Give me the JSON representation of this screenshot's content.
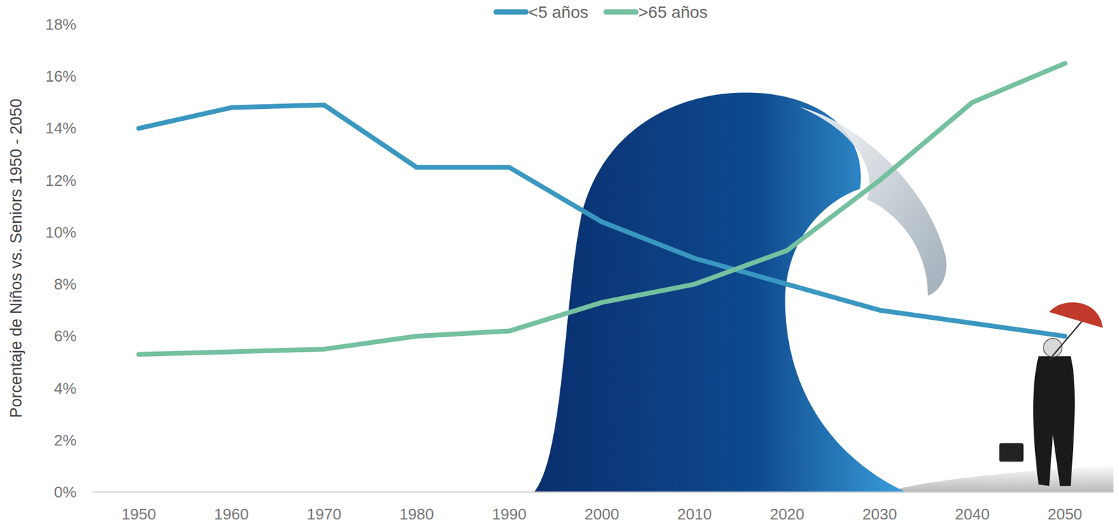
{
  "chart_data": {
    "type": "line",
    "y_label": "Porcentaje de Niños vs. Seniors 1950 - 2050",
    "x": [
      1950,
      1960,
      1970,
      1980,
      1990,
      2000,
      2010,
      2020,
      2030,
      2040,
      2050
    ],
    "xlim": [
      1945,
      2055
    ],
    "xticks": [
      1950,
      1960,
      1970,
      1980,
      1990,
      2000,
      2010,
      2020,
      2030,
      2040,
      2050
    ],
    "ylim": [
      0,
      18
    ],
    "yticks": [
      {
        "value": 0,
        "label": "0%"
      },
      {
        "value": 2,
        "label": "2%"
      },
      {
        "value": 4,
        "label": "4%"
      },
      {
        "value": 6,
        "label": "6%"
      },
      {
        "value": 8,
        "label": "8%"
      },
      {
        "value": 10,
        "label": "10%"
      },
      {
        "value": 12,
        "label": "12%"
      },
      {
        "value": 14,
        "label": "14%"
      },
      {
        "value": 16,
        "label": "16%"
      },
      {
        "value": 18,
        "label": "18%"
      }
    ],
    "grid": false,
    "legend": "top",
    "series": [
      {
        "name": "<5 años",
        "color": "#3a97c0",
        "values": [
          14.0,
          14.8,
          14.9,
          12.5,
          12.5,
          10.4,
          9.0,
          8.0,
          7.0,
          6.5,
          6.0
        ]
      },
      {
        "name": ">65 años",
        "color": "#74c0a0",
        "values": [
          5.3,
          5.4,
          5.5,
          6.0,
          6.2,
          7.3,
          8.0,
          9.3,
          12.0,
          15.0,
          16.5
        ]
      }
    ]
  }
}
